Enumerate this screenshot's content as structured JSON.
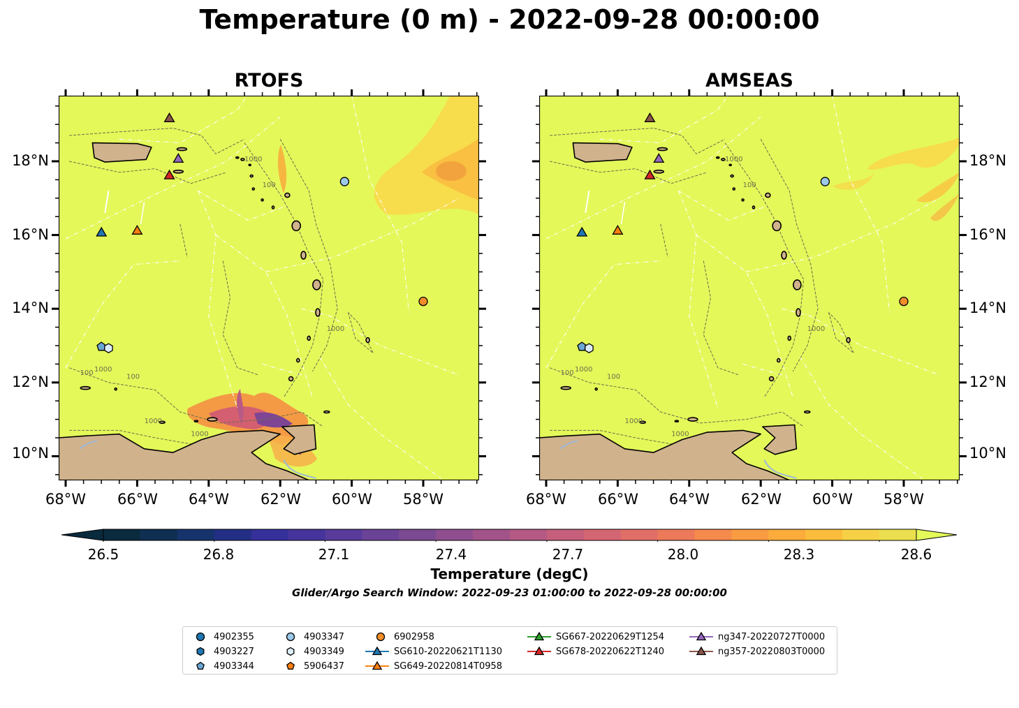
{
  "title": "Temperature (0 m) - 2022-09-28 00:00:00",
  "panels": [
    {
      "title": "RTOFS"
    },
    {
      "title": "AMSEAS"
    }
  ],
  "lon_labels": [
    "68°W",
    "66°W",
    "64°W",
    "62°W",
    "60°W",
    "58°W"
  ],
  "lat_labels": [
    "18°N",
    "16°N",
    "14°N",
    "12°N",
    "10°N"
  ],
  "colorbar": {
    "ticks": [
      "26.5",
      "26.8",
      "27.1",
      "27.4",
      "27.7",
      "28.0",
      "28.3",
      "28.6"
    ],
    "label": "Temperature (degC)",
    "colors": [
      "#0a2a3e",
      "#0f2f52",
      "#16336c",
      "#232f85",
      "#35309a",
      "#46349c",
      "#583b9a",
      "#6a4397",
      "#7c4a93",
      "#8f4f8f",
      "#a2548a",
      "#b45a84",
      "#c55f7c",
      "#d46673",
      "#e16f67",
      "#ec7a5a",
      "#f48a4c",
      "#f99b41",
      "#fbac3b",
      "#fbbe3c",
      "#f6d145",
      "#ecdf4f"
    ],
    "over_color": "#e4f85a"
  },
  "subtitle": "Glider/Argo Search Window: 2022-09-23 01:00:00 to 2022-09-28 00:00:00",
  "contour_labels": {
    "shallow": "100",
    "deep": "1000"
  },
  "map_colors": {
    "ocean": "#e4f85a",
    "land": "#d0b28c",
    "river": "#9fb8d8"
  },
  "legend": [
    {
      "label": "4902355",
      "marker": "circle",
      "color": "#1f77b4"
    },
    {
      "label": "4903227",
      "marker": "hexagon",
      "color": "#1f77b4"
    },
    {
      "label": "4903344",
      "marker": "pentagon",
      "color": "#6aa6d3"
    },
    {
      "label": "4903347",
      "marker": "circle",
      "color": "#9cc8ea"
    },
    {
      "label": "4903349",
      "marker": "hexagon",
      "color": "#dcecf8"
    },
    {
      "label": "5906437",
      "marker": "pentagon",
      "color": "#ff7f0e"
    },
    {
      "label": "6902958",
      "marker": "circle",
      "color": "#f28e2b"
    },
    {
      "label": "SG610-20220621T1130",
      "marker": "triangle-line",
      "color": "#1f77b4"
    },
    {
      "label": "SG649-20220814T0958",
      "marker": "triangle-line",
      "color": "#ff7f0e"
    },
    {
      "label": "SG667-20220629T1254",
      "marker": "triangle-line",
      "color": "#2ca02c"
    },
    {
      "label": "SG678-20220622T1240",
      "marker": "triangle-line",
      "color": "#d62728"
    },
    {
      "label": "ng347-20220727T0000",
      "marker": "triangle-line",
      "color": "#9467bd"
    },
    {
      "label": "ng357-20220803T0000",
      "marker": "triangle-line",
      "color": "#8c564b"
    }
  ],
  "platforms": [
    {
      "label": "4903344",
      "lon": -67.0,
      "lat": 12.97,
      "marker": "pentagon",
      "color": "#6aa6d3"
    },
    {
      "label": "4903349",
      "lon": -66.8,
      "lat": 12.93,
      "marker": "hexagon",
      "color": "#dcecf8"
    },
    {
      "label": "4903347",
      "lon": -60.2,
      "lat": 17.45,
      "marker": "circle",
      "color": "#9cc8ea"
    },
    {
      "label": "6902958",
      "lon": -58.0,
      "lat": 14.2,
      "marker": "circle",
      "color": "#f28e2b"
    },
    {
      "label": "SG610-20220621T1130",
      "lon": -67.0,
      "lat": 16.05,
      "marker": "triangle",
      "color": "#1f77b4"
    },
    {
      "label": "SG649-20220814T0958",
      "lon": -66.0,
      "lat": 16.1,
      "marker": "triangle",
      "color": "#ff7f0e"
    },
    {
      "label": "SG678-20220622T1240",
      "lon": -65.1,
      "lat": 17.6,
      "marker": "triangle",
      "color": "#d62728"
    },
    {
      "label": "ng347-20220727T0000",
      "lon": -64.85,
      "lat": 18.05,
      "marker": "triangle",
      "color": "#9467bd"
    },
    {
      "label": "ng357-20220803T0000",
      "lon": -65.1,
      "lat": 19.15,
      "marker": "triangle",
      "color": "#8c564b"
    }
  ]
}
